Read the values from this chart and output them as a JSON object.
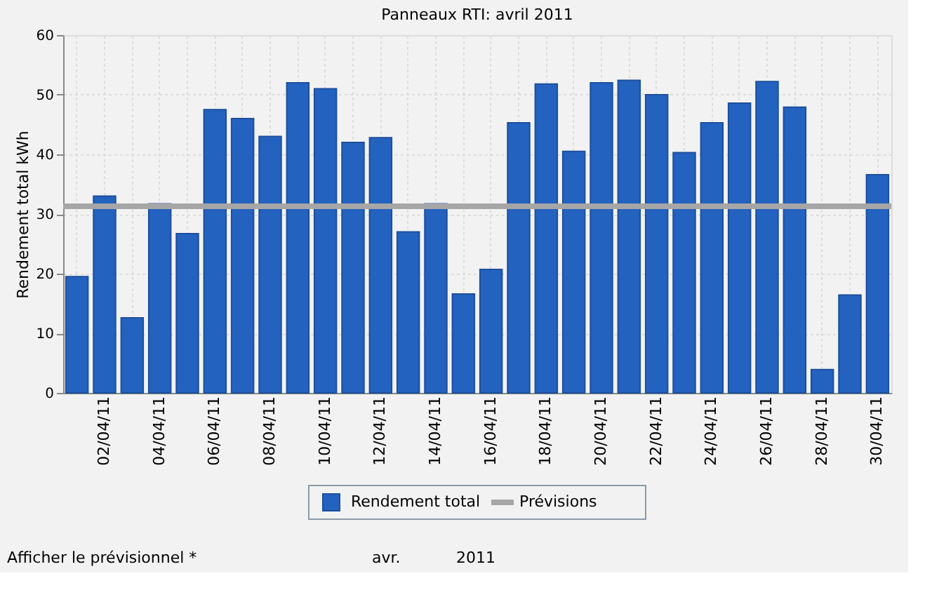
{
  "chart_data": {
    "type": "bar",
    "title": "Panneaux RTI: avril 2011",
    "ylabel": "Rendement total kWh",
    "categories": [
      null,
      "02/04/11",
      null,
      "04/04/11",
      null,
      "06/04/11",
      null,
      "08/04/11",
      null,
      "10/04/11",
      null,
      "12/04/11",
      null,
      "14/04/11",
      null,
      "16/04/11",
      null,
      "18/04/11",
      null,
      "20/04/11",
      null,
      "22/04/11",
      null,
      "24/04/11",
      null,
      "26/04/11",
      null,
      "28/04/11",
      null,
      "30/04/11"
    ],
    "series": [
      {
        "name": "Rendement total",
        "color": "#2462c0",
        "values": [
          19.5,
          33,
          12.6,
          31.7,
          26.7,
          47.5,
          46,
          43,
          52,
          51,
          42,
          42.8,
          27,
          31.7,
          16.6,
          20.7,
          45.3,
          51.8,
          40.5,
          52,
          52.4,
          50,
          40.3,
          45.3,
          48.6,
          52.2,
          47.9,
          3.9,
          16.4,
          36.6
        ]
      }
    ],
    "ref_lines": [
      {
        "axis": "y",
        "value": 31.3,
        "label": "Prévisions",
        "color": "#a6a6a6"
      }
    ],
    "ylim": [
      0,
      60
    ],
    "yticks": [
      0,
      10,
      20,
      30,
      40,
      50,
      60
    ],
    "grid": true,
    "legend": "bottom",
    "annotations": [
      "Afficher le prévisionnel *",
      "avr.",
      "2011"
    ]
  }
}
